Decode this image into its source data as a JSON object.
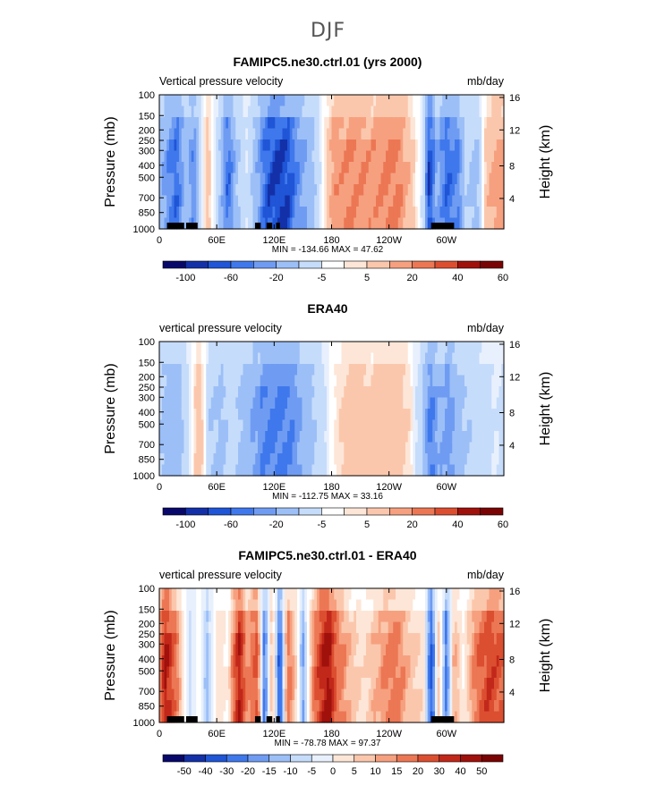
{
  "page_title": "DJF",
  "colors": {
    "blues": [
      "#08086b",
      "#1330a8",
      "#1f55d6",
      "#3f78ec",
      "#6f9cf2",
      "#9cbff7",
      "#c6dcfb"
    ],
    "reds": [
      "#fde6d7",
      "#fbc7ac",
      "#f6a07f",
      "#ec7754",
      "#dc4e30",
      "#c2281a",
      "#a0110c",
      "#7a0303"
    ],
    "land": "#000000"
  },
  "chart_data": [
    {
      "type": "heatmap",
      "title": "FAMIPC5.ne30.ctrl.01 (yrs 2000)",
      "left_label": "Vertical pressure velocity",
      "right_label": "mb/day",
      "xlabel": "",
      "ylabel": "Pressure (mb)",
      "ylabel_right": "Height (km)",
      "x_ticks": [
        "0",
        "60E",
        "120E",
        "180",
        "120W",
        "60W"
      ],
      "y_ticks": [
        "100",
        "150",
        "200",
        "250",
        "300",
        "400",
        "500",
        "700",
        "850",
        "1000"
      ],
      "y_ticks_right": [
        "16",
        "12",
        "8",
        "4"
      ],
      "stats": "MIN = -134.66  MAX =  47.62",
      "colorbar_labels": [
        "-100",
        "-60",
        "-20",
        "-5",
        "5",
        "20",
        "40",
        "60"
      ],
      "colorbar_boxes": 15,
      "ylim": [
        1000,
        100
      ],
      "xlim": [
        0,
        360
      ],
      "profile": [
        [
          0,
          -30
        ],
        [
          8,
          -60
        ],
        [
          18,
          -90
        ],
        [
          28,
          -30
        ],
        [
          36,
          -70
        ],
        [
          42,
          -20
        ],
        [
          50,
          20
        ],
        [
          62,
          -15
        ],
        [
          72,
          -90
        ],
        [
          80,
          -30
        ],
        [
          92,
          -5
        ],
        [
          104,
          -50
        ],
        [
          112,
          -100
        ],
        [
          124,
          -120
        ],
        [
          134,
          -110
        ],
        [
          146,
          -60
        ],
        [
          160,
          -30
        ],
        [
          172,
          5
        ],
        [
          182,
          30
        ],
        [
          202,
          35
        ],
        [
          222,
          30
        ],
        [
          246,
          40
        ],
        [
          262,
          20
        ],
        [
          276,
          -10
        ],
        [
          282,
          -120
        ],
        [
          290,
          -40
        ],
        [
          300,
          -90
        ],
        [
          312,
          -70
        ],
        [
          320,
          -20
        ],
        [
          332,
          -30
        ],
        [
          342,
          20
        ],
        [
          354,
          30
        ],
        [
          360,
          30
        ]
      ],
      "land_segments": [
        [
          8,
          26
        ],
        [
          28,
          40
        ],
        [
          100,
          106
        ],
        [
          112,
          118
        ],
        [
          122,
          126
        ],
        [
          284,
          308
        ]
      ]
    },
    {
      "type": "heatmap",
      "title": "ERA40",
      "left_label": "vertical pressure velocity",
      "right_label": "mb/day",
      "xlabel": "",
      "ylabel": "Pressure (mb)",
      "ylabel_right": "Height (km)",
      "x_ticks": [
        "0",
        "60E",
        "120E",
        "180",
        "120W",
        "60W"
      ],
      "y_ticks": [
        "100",
        "150",
        "200",
        "250",
        "300",
        "400",
        "500",
        "700",
        "850",
        "1000"
      ],
      "y_ticks_right": [
        "16",
        "12",
        "8",
        "4"
      ],
      "stats": "MIN = -112.75  MAX =  33.16",
      "colorbar_labels": [
        "-100",
        "-60",
        "-20",
        "-5",
        "5",
        "20",
        "40",
        "60"
      ],
      "colorbar_boxes": 15,
      "ylim": [
        1000,
        100
      ],
      "xlim": [
        0,
        360
      ],
      "profile": [
        [
          0,
          -20
        ],
        [
          10,
          -40
        ],
        [
          22,
          -30
        ],
        [
          30,
          -10
        ],
        [
          40,
          20
        ],
        [
          46,
          10
        ],
        [
          52,
          -20
        ],
        [
          64,
          -30
        ],
        [
          76,
          -15
        ],
        [
          88,
          -30
        ],
        [
          100,
          -50
        ],
        [
          110,
          -70
        ],
        [
          124,
          -80
        ],
        [
          138,
          -70
        ],
        [
          150,
          -40
        ],
        [
          168,
          -15
        ],
        [
          182,
          5
        ],
        [
          200,
          20
        ],
        [
          222,
          15
        ],
        [
          244,
          20
        ],
        [
          262,
          10
        ],
        [
          274,
          -20
        ],
        [
          284,
          -80
        ],
        [
          292,
          -40
        ],
        [
          302,
          -60
        ],
        [
          314,
          -30
        ],
        [
          326,
          -20
        ],
        [
          340,
          -10
        ],
        [
          352,
          -5
        ],
        [
          360,
          -10
        ]
      ],
      "land_segments": []
    },
    {
      "type": "heatmap",
      "title": "FAMIPC5.ne30.ctrl.01 - ERA40",
      "left_label": "vertical pressure velocity",
      "right_label": "mb/day",
      "xlabel": "",
      "ylabel": "Pressure (mb)",
      "ylabel_right": "Height (km)",
      "x_ticks": [
        "0",
        "60E",
        "120E",
        "180",
        "120W",
        "60W"
      ],
      "y_ticks": [
        "100",
        "150",
        "200",
        "250",
        "300",
        "400",
        "500",
        "700",
        "850",
        "1000"
      ],
      "y_ticks_right": [
        "16",
        "12",
        "8",
        "4"
      ],
      "stats": "MIN = -78.78  MAX =  97.37",
      "colorbar_labels": [
        "-50",
        "-40",
        "-30",
        "-20",
        "-15",
        "-10",
        "-5",
        "0",
        "5",
        "10",
        "15",
        "20",
        "30",
        "40",
        "50"
      ],
      "colorbar_boxes": 16,
      "ylim": [
        1000,
        100
      ],
      "xlim": [
        0,
        360
      ],
      "profile": [
        [
          0,
          20
        ],
        [
          6,
          60
        ],
        [
          14,
          40
        ],
        [
          24,
          10
        ],
        [
          32,
          -10
        ],
        [
          40,
          5
        ],
        [
          50,
          -15
        ],
        [
          60,
          10
        ],
        [
          72,
          5
        ],
        [
          84,
          60
        ],
        [
          92,
          20
        ],
        [
          102,
          40
        ],
        [
          110,
          -30
        ],
        [
          118,
          20
        ],
        [
          126,
          -40
        ],
        [
          134,
          30
        ],
        [
          142,
          15
        ],
        [
          150,
          -20
        ],
        [
          162,
          30
        ],
        [
          176,
          70
        ],
        [
          186,
          30
        ],
        [
          200,
          15
        ],
        [
          214,
          10
        ],
        [
          230,
          20
        ],
        [
          246,
          30
        ],
        [
          262,
          15
        ],
        [
          276,
          10
        ],
        [
          284,
          -40
        ],
        [
          292,
          15
        ],
        [
          300,
          -30
        ],
        [
          308,
          20
        ],
        [
          318,
          5
        ],
        [
          332,
          30
        ],
        [
          344,
          45
        ],
        [
          356,
          40
        ],
        [
          360,
          35
        ]
      ],
      "land_segments": [
        [
          8,
          26
        ],
        [
          28,
          40
        ],
        [
          100,
          106
        ],
        [
          112,
          118
        ],
        [
          122,
          126
        ],
        [
          284,
          308
        ]
      ]
    }
  ]
}
